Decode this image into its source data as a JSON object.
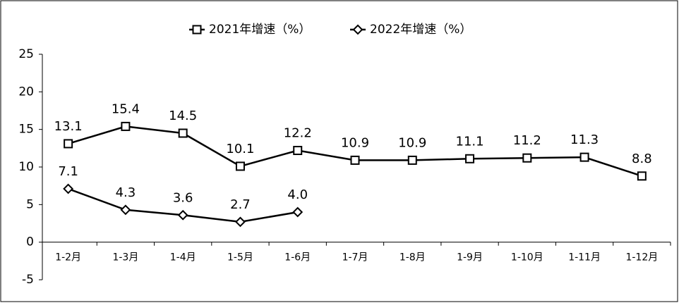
{
  "chart_data": {
    "type": "line",
    "categories": [
      "1-2月",
      "1-3月",
      "1-4月",
      "1-5月",
      "1-6月",
      "1-7月",
      "1-8月",
      "1-9月",
      "1-10月",
      "1-11月",
      "1-12月"
    ],
    "series": [
      {
        "name": "2021年增速（%）",
        "color": "#000000",
        "marker": "square",
        "values": [
          13.1,
          15.4,
          14.5,
          10.1,
          12.2,
          10.9,
          10.9,
          11.1,
          11.2,
          11.3,
          8.8
        ]
      },
      {
        "name": "2022年增速（%）",
        "color": "#000000",
        "marker": "diamond",
        "values": [
          7.1,
          4.3,
          3.6,
          2.7,
          4.0,
          null,
          null,
          null,
          null,
          null,
          null
        ],
        "value_labels": [
          "7.1",
          "4.3",
          "3.6",
          "2.7",
          "4.0",
          null,
          null,
          null,
          null,
          null,
          null
        ]
      }
    ],
    "ylim": [
      -5,
      25
    ],
    "yticks": [
      -5,
      0,
      5,
      10,
      15,
      20,
      25
    ],
    "grid": false,
    "legend": "top"
  }
}
